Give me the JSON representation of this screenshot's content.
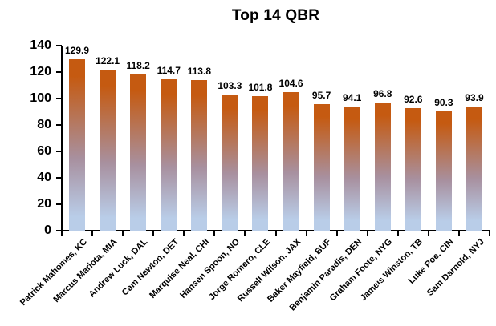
{
  "chart_data": {
    "type": "bar",
    "title": "Top 14 QBR",
    "categories": [
      "Patrick Mahomes, KC",
      "Marcus Mariota, MIA",
      "Andrew Luck, DAL",
      "Cam Newton, DET",
      "Marquise Neal, CHI",
      "Hansen Spoon, NO",
      "Jorge Romero, CLE",
      "Russell Wilson, JAX",
      "Baker Mayfield, BUF",
      "Benjamin Paradis, DEN",
      "Graham Foote, NYG",
      "Jameis Winston, TB",
      "Luke Poe, CIN",
      "Sam Darnold, NYJ"
    ],
    "values": [
      129.9,
      122.1,
      118.2,
      114.7,
      113.8,
      103.3,
      101.8,
      104.6,
      95.7,
      94.1,
      96.8,
      92.6,
      90.3,
      93.9
    ],
    "xlabel": "",
    "ylabel": "",
    "ylim": [
      0,
      140
    ],
    "yticks": [
      0,
      20,
      40,
      60,
      80,
      100,
      120,
      140
    ],
    "grid": false,
    "legend": false,
    "data_labels": true,
    "x_label_rotation_deg": 45,
    "colors": {
      "bar_gradient_top": "#C55A11",
      "bar_gradient_mid": "#A8909F",
      "bar_gradient_bottom": "#B9CDE8",
      "axis": "#000000",
      "title_text": "#000000",
      "label_text": "#000000",
      "background": "#FFFFFF"
    }
  }
}
